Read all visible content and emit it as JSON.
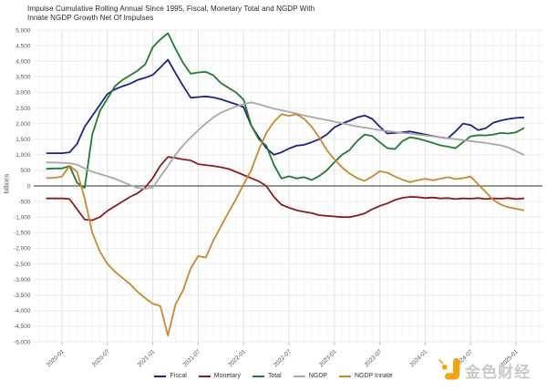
{
  "header": {
    "title_line1": "Impulse Cumulative Rolling Annual Since 1995, Fiscal, Monetary Total and NGDP With",
    "title_line2": "Innate NGDP Growth Net Of Impulses"
  },
  "watermark": {
    "brand_text": "金色财经",
    "logo_color": "#f2a50c"
  },
  "chart_data": {
    "type": "line",
    "title": "Impulse Cumulative Rolling Annual Since 1995, Fiscal, Monetary Total and NGDP With Innate NGDP Growth Net Of Impulses",
    "xlabel": "",
    "ylabel": "billions",
    "ylim": [
      -5000,
      5000
    ],
    "y_tick_step": 500,
    "y_tick_labels": [
      "5,000",
      "4,500",
      "4,000",
      "3,500",
      "3,000",
      "2,500",
      "2,000",
      "1,500",
      "1,000",
      "500",
      "0",
      "-500",
      "-1,000",
      "-1,500",
      "-2,000",
      "-2,500",
      "-3,000",
      "-3,500",
      "-4,000",
      "-4,500",
      "-5,000"
    ],
    "x_start": "2019-11",
    "frequency": "monthly",
    "x_tick_labels": [
      "2020-01",
      "2020-07",
      "2021-01",
      "2021-07",
      "2022-01",
      "2022-07",
      "2023-01",
      "2023-07",
      "2024-01",
      "2024-07",
      "2025-01"
    ],
    "x_first_tick_index": 2,
    "x_tick_every": 6,
    "grid": true,
    "legend_position": "bottom-center",
    "zero_line_color": "#5a5a5a",
    "series": [
      {
        "name": "Fiscal",
        "color": "#1c2487",
        "values": [
          1050,
          1050,
          1050,
          1080,
          1350,
          1900,
          2250,
          2600,
          2950,
          3100,
          3200,
          3280,
          3400,
          3470,
          3560,
          3800,
          4050,
          3620,
          3210,
          2830,
          2850,
          2870,
          2840,
          2780,
          2700,
          2620,
          2530,
          1940,
          1560,
          1210,
          1000,
          1080,
          1200,
          1290,
          1320,
          1400,
          1500,
          1650,
          1880,
          2000,
          2090,
          2200,
          2260,
          2150,
          1900,
          1680,
          1700,
          1720,
          1750,
          1700,
          1650,
          1600,
          1560,
          1530,
          1750,
          2000,
          1950,
          1790,
          1850,
          2030,
          2100,
          2150,
          2180,
          2200
        ]
      },
      {
        "name": "Monetary",
        "color": "#8e1b1b",
        "values": [
          -400,
          -400,
          -400,
          -420,
          -750,
          -1080,
          -1100,
          -1000,
          -800,
          -650,
          -500,
          -350,
          -230,
          -50,
          250,
          650,
          930,
          900,
          850,
          820,
          700,
          670,
          640,
          600,
          550,
          450,
          350,
          250,
          150,
          0,
          -350,
          -600,
          -700,
          -780,
          -830,
          -870,
          -940,
          -960,
          -980,
          -1000,
          -1000,
          -950,
          -880,
          -750,
          -640,
          -560,
          -450,
          -380,
          -350,
          -360,
          -390,
          -370,
          -400,
          -390,
          -420,
          -400,
          -410,
          -390,
          -420,
          -400,
          -410,
          -390,
          -420,
          -400
        ]
      },
      {
        "name": "Total",
        "color": "#237a32",
        "values": [
          550,
          560,
          560,
          640,
          100,
          -60,
          1650,
          2400,
          2800,
          3200,
          3400,
          3550,
          3700,
          3900,
          4450,
          4700,
          4900,
          4400,
          3950,
          3600,
          3640,
          3660,
          3550,
          3300,
          3150,
          3000,
          2770,
          1950,
          1500,
          1290,
          680,
          240,
          310,
          240,
          280,
          190,
          320,
          500,
          760,
          1000,
          1150,
          1440,
          1650,
          1600,
          1400,
          1210,
          1180,
          1440,
          1560,
          1520,
          1450,
          1380,
          1300,
          1260,
          1210,
          1400,
          1590,
          1630,
          1620,
          1650,
          1700,
          1680,
          1720,
          1850
        ]
      },
      {
        "name": "NGDP",
        "color": "#a9a9a9",
        "values": [
          750,
          750,
          740,
          730,
          680,
          560,
          460,
          380,
          310,
          230,
          130,
          30,
          -60,
          -90,
          -50,
          300,
          640,
          1000,
          1300,
          1550,
          1790,
          2000,
          2200,
          2350,
          2450,
          2550,
          2620,
          2680,
          2620,
          2550,
          2480,
          2430,
          2380,
          2320,
          2260,
          2210,
          2160,
          2110,
          2060,
          2010,
          1960,
          1910,
          1870,
          1830,
          1790,
          1760,
          1730,
          1700,
          1680,
          1650,
          1620,
          1590,
          1560,
          1530,
          1500,
          1470,
          1440,
          1410,
          1380,
          1340,
          1300,
          1230,
          1120,
          1000
        ]
      },
      {
        "name": "NGDP Innate",
        "color": "#c9882f",
        "values": [
          250,
          260,
          300,
          650,
          450,
          -400,
          -1500,
          -2100,
          -2500,
          -2750,
          -2950,
          -3150,
          -3400,
          -3600,
          -3780,
          -3850,
          -4800,
          -3800,
          -3350,
          -2650,
          -2250,
          -2300,
          -1750,
          -1300,
          -850,
          -420,
          50,
          500,
          1150,
          1700,
          2050,
          2300,
          2250,
          2300,
          2150,
          1900,
          1550,
          1150,
          850,
          600,
          400,
          250,
          160,
          300,
          470,
          420,
          300,
          200,
          120,
          180,
          230,
          180,
          230,
          280,
          220,
          250,
          300,
          50,
          -200,
          -450,
          -600,
          -680,
          -730,
          -780
        ]
      }
    ]
  }
}
